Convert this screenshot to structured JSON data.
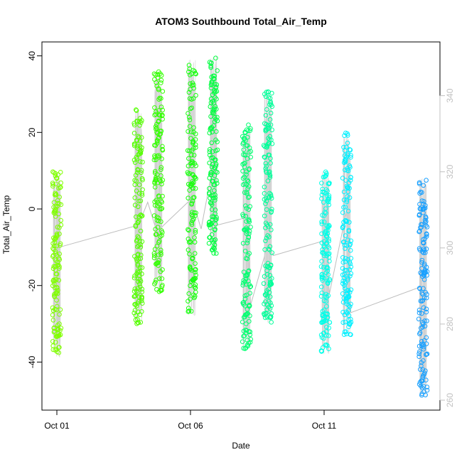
{
  "chart_data": {
    "type": "scatter",
    "title": "ATOM3 Southbound Total_Air_Temp",
    "xlabel": "Date",
    "ylabel": "Total_Air_Temp",
    "xlim": [
      0,
      14.3
    ],
    "ylim": [
      -52,
      42
    ],
    "y2lim": [
      258,
      353
    ],
    "x_ticks": [
      {
        "value": 0,
        "label": "Oct 01"
      },
      {
        "value": 5,
        "label": "Oct 06"
      },
      {
        "value": 10,
        "label": "Oct 11"
      }
    ],
    "y_ticks": [
      -40,
      -20,
      0,
      20,
      40
    ],
    "y2_ticks": [
      260,
      280,
      300,
      320,
      340
    ],
    "grid": false,
    "legend": "none",
    "colors": {
      "axis": "#000000",
      "secondary_axis": "#c0c0c0",
      "altitude_trace": "#bdbdbd"
    },
    "series": [
      {
        "day": 0.0,
        "y_min": -39,
        "y_max": 10,
        "color": "#80ff00"
      },
      {
        "day": 3.05,
        "y_min": -30,
        "y_max": 26,
        "color": "#55ff00"
      },
      {
        "day": 3.8,
        "y_min": -22,
        "y_max": 36,
        "color": "#33ff00"
      },
      {
        "day": 5.05,
        "y_min": -28,
        "y_max": 39,
        "color": "#1aff10"
      },
      {
        "day": 5.85,
        "y_min": -12,
        "y_max": 40,
        "color": "#00ff40"
      },
      {
        "day": 7.1,
        "y_min": -37,
        "y_max": 22,
        "color": "#00ff70"
      },
      {
        "day": 7.9,
        "y_min": -30,
        "y_max": 31,
        "color": "#00ff9a"
      },
      {
        "day": 10.05,
        "y_min": -38,
        "y_max": 10,
        "color": "#00ffe8"
      },
      {
        "day": 10.85,
        "y_min": -33,
        "y_max": 20,
        "color": "#00f0ff"
      },
      {
        "day": 13.7,
        "y_min": -49,
        "y_max": 8,
        "color": "#18a0ff"
      }
    ],
    "secondary_line": {
      "x": [
        0.0,
        3.05,
        3.4,
        3.75,
        4.0,
        5.05,
        5.4,
        5.85,
        6.0,
        7.1,
        7.25,
        7.9,
        8.1,
        10.05,
        10.2,
        10.85,
        11.0,
        13.7
      ],
      "y": [
        300,
        306,
        312,
        304,
        306,
        313,
        305,
        322,
        306,
        308,
        285,
        301,
        298,
        302,
        288,
        310,
        283,
        290
      ]
    }
  }
}
